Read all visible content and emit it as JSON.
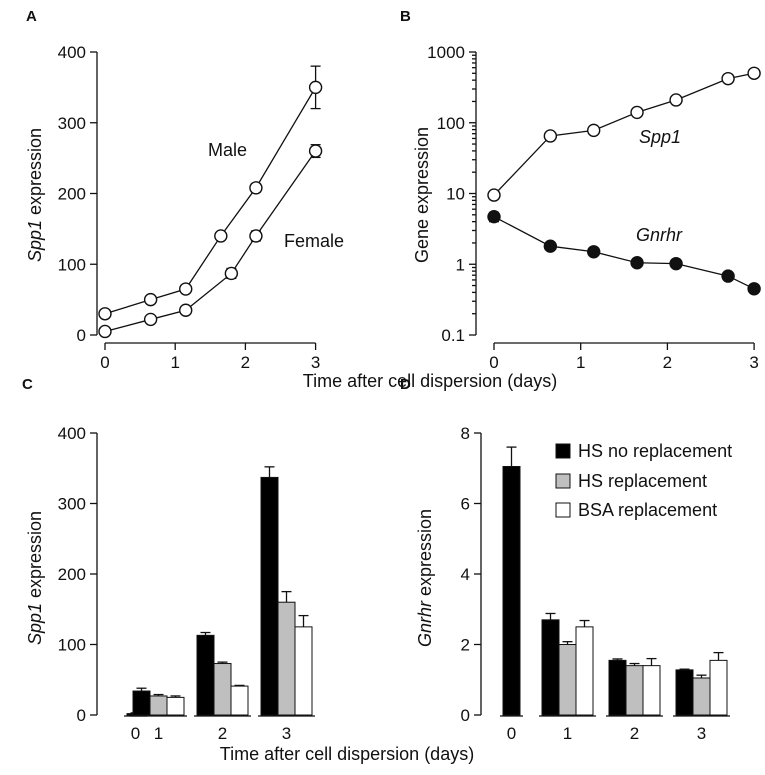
{
  "chart_data": [
    {
      "panel": "A",
      "type": "line",
      "ylabel_italic": "Spp1",
      "ylabel_rest": " expression",
      "x_ticks": [
        "0",
        "1",
        "2",
        "3"
      ],
      "y_ticks": [
        "0",
        "100",
        "200",
        "300",
        "400"
      ],
      "xlim": [
        -0.15,
        3.2
      ],
      "ylim": [
        0,
        400
      ],
      "series": [
        {
          "name": "Male",
          "x": [
            0,
            0.65,
            1.15,
            1.65,
            2.15,
            3
          ],
          "y": [
            30,
            50,
            65,
            140,
            208,
            350
          ],
          "err": [
            3,
            4,
            3,
            3,
            6,
            30
          ],
          "marker": "open"
        },
        {
          "name": "Female",
          "x": [
            0,
            0.65,
            1.15,
            1.8,
            2.15,
            3
          ],
          "y": [
            5,
            22,
            35,
            87,
            140,
            260
          ],
          "err": [
            3,
            3,
            3,
            7,
            7,
            9
          ],
          "marker": "open"
        }
      ]
    },
    {
      "panel": "B",
      "type": "line",
      "scale": "log",
      "ylabel": "Gene expression",
      "x_ticks": [
        "0",
        "1",
        "2",
        "3"
      ],
      "y_ticks": [
        "0.1",
        "1",
        "10",
        "100",
        "1000"
      ],
      "xlim": [
        -0.15,
        3.2
      ],
      "ylim": [
        0.1,
        1000
      ],
      "series": [
        {
          "name": "Spp1",
          "x": [
            0,
            0.65,
            1.15,
            1.65,
            2.1,
            2.7,
            3
          ],
          "y": [
            9.5,
            65,
            78,
            140,
            210,
            420,
            500
          ],
          "err": [
            0,
            0,
            0,
            0,
            0,
            0,
            0
          ],
          "marker": "open"
        },
        {
          "name": "Gnrhr",
          "x": [
            0,
            0.65,
            1.15,
            1.65,
            2.1,
            2.7,
            3
          ],
          "y": [
            4.7,
            1.8,
            1.5,
            1.05,
            1.02,
            0.68,
            0.45
          ],
          "err": [
            0.7,
            0,
            0,
            0,
            0,
            0,
            0
          ],
          "marker": "filled"
        }
      ]
    },
    {
      "panel": "C",
      "type": "bar",
      "ylabel_italic": "Spp1",
      "ylabel_rest": " expression",
      "categories": [
        "0",
        "1",
        "2",
        "3"
      ],
      "y_ticks": [
        "0",
        "100",
        "200",
        "300",
        "400"
      ],
      "ylim": [
        0,
        400
      ],
      "series": [
        {
          "name": "HS no replacement",
          "color": "#000000",
          "values": [
            2,
            34,
            113,
            337
          ],
          "err": [
            1,
            4,
            4,
            15
          ]
        },
        {
          "name": "HS replacement",
          "color": "#bfbfbf",
          "values": [
            null,
            27,
            73,
            160
          ],
          "err": [
            0,
            2,
            2,
            15
          ]
        },
        {
          "name": "BSA replacement",
          "color": "#ffffff",
          "values": [
            null,
            25,
            41,
            125
          ],
          "err": [
            0,
            2,
            1,
            16
          ]
        }
      ]
    },
    {
      "panel": "D",
      "type": "bar",
      "ylabel_italic": "Gnrhr",
      "ylabel_rest": " expression",
      "categories": [
        "0",
        "1",
        "2",
        "3"
      ],
      "y_ticks": [
        "0",
        "2",
        "4",
        "6",
        "8"
      ],
      "ylim": [
        0,
        8
      ],
      "series": [
        {
          "name": "HS no replacement",
          "color": "#000000",
          "values": [
            7.05,
            2.7,
            1.55,
            1.28
          ],
          "err": [
            0.55,
            0.18,
            0.04,
            0.02
          ]
        },
        {
          "name": "HS replacement",
          "color": "#bfbfbf",
          "values": [
            null,
            2.0,
            1.4,
            1.05
          ],
          "err": [
            0,
            0.08,
            0.06,
            0.08
          ]
        },
        {
          "name": "BSA replacement",
          "color": "#ffffff",
          "values": [
            null,
            2.5,
            1.4,
            1.55
          ],
          "err": [
            0,
            0.18,
            0.2,
            0.22
          ]
        }
      ],
      "legend": [
        "HS no replacement",
        "HS replacement",
        "BSA replacement"
      ]
    }
  ],
  "shared_xlabel": "Time after cell dispersion (days)",
  "panel_labels": [
    "A",
    "B",
    "C",
    "D"
  ],
  "annotations": {
    "male": "Male",
    "female": "Female",
    "spp1": "Spp1",
    "gnrhr": "Gnrhr"
  }
}
